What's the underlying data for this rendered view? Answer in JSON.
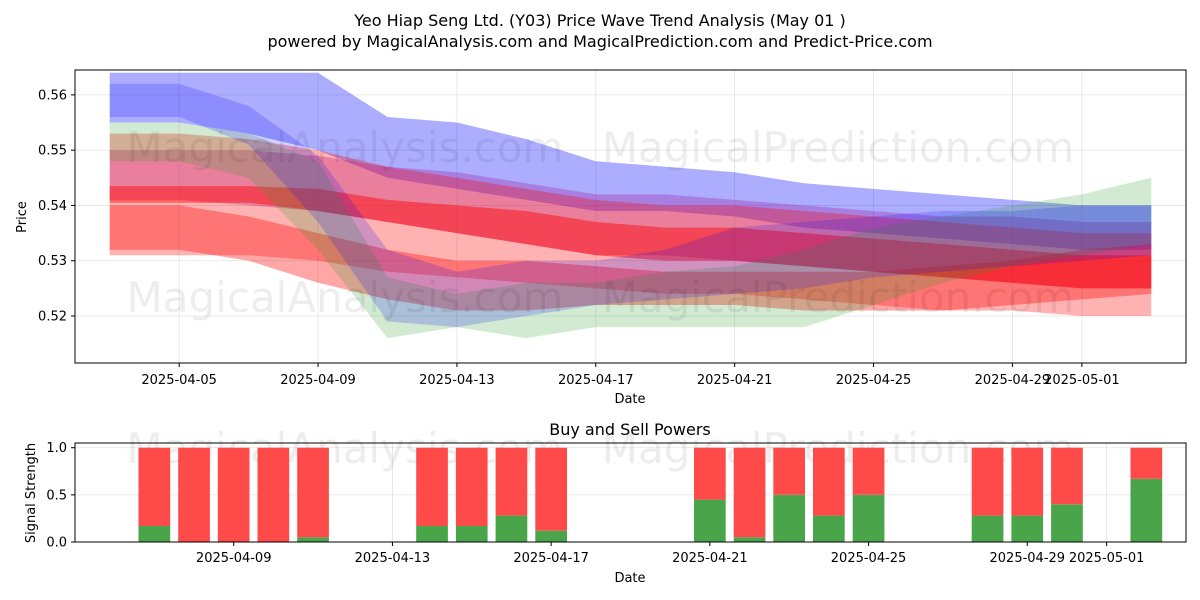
{
  "title_line1": "Yeo Hiap Seng Ltd. (Y03) Price Wave Trend Analysis (May 01 )",
  "title_line2": "powered by MagicalAnalysis.com and MagicalPrediction.com and Predict-Price.com",
  "watermarks": [
    "MagicalAnalysis.com",
    "MagicalPrediction.com"
  ],
  "colors": {
    "blue": "#0000ff",
    "red": "#ff0000",
    "green": "#2ca02c",
    "purple": "#a020a0",
    "buy": "#4aa54a",
    "sell": "#ff4a4a"
  },
  "chart_data": [
    {
      "type": "area",
      "title": "",
      "xlabel": "Date",
      "ylabel": "Price",
      "x_range": [
        "2025-04-02",
        "2025-05-04"
      ],
      "ylim": [
        0.5115,
        0.5645
      ],
      "x_ticks": [
        "2025-04-05",
        "2025-04-09",
        "2025-04-13",
        "2025-04-17",
        "2025-04-21",
        "2025-04-25",
        "2025-04-29",
        "2025-05-01"
      ],
      "y_ticks": [
        "0.52",
        "0.53",
        "0.54",
        "0.55",
        "0.56"
      ],
      "grid": true,
      "x": [
        "2025-04-03",
        "2025-04-05",
        "2025-04-07",
        "2025-04-09",
        "2025-04-11",
        "2025-04-13",
        "2025-04-15",
        "2025-04-17",
        "2025-04-19",
        "2025-04-21",
        "2025-04-23",
        "2025-04-25",
        "2025-04-27",
        "2025-04-29",
        "2025-05-01",
        "2025-05-03"
      ],
      "bands": [
        {
          "color": "blue",
          "opacity": 0.32,
          "upper": [
            0.564,
            0.564,
            0.564,
            0.564,
            0.556,
            0.555,
            0.552,
            0.548,
            0.547,
            0.546,
            0.544,
            0.543,
            0.542,
            0.541,
            0.54,
            0.54
          ],
          "lower": [
            0.555,
            0.555,
            0.553,
            0.55,
            0.545,
            0.543,
            0.541,
            0.539,
            0.539,
            0.538,
            0.536,
            0.535,
            0.534,
            0.533,
            0.532,
            0.532
          ]
        },
        {
          "color": "purple",
          "opacity": 0.32,
          "upper": [
            0.55,
            0.55,
            0.55,
            0.549,
            0.547,
            0.546,
            0.544,
            0.542,
            0.542,
            0.541,
            0.54,
            0.539,
            0.538,
            0.538,
            0.537,
            0.537
          ],
          "lower": [
            0.541,
            0.541,
            0.54,
            0.539,
            0.537,
            0.535,
            0.533,
            0.531,
            0.531,
            0.53,
            0.529,
            0.528,
            0.527,
            0.526,
            0.525,
            0.525
          ]
        },
        {
          "color": "red",
          "opacity": 0.3,
          "upper": [
            0.553,
            0.553,
            0.552,
            0.55,
            0.547,
            0.545,
            0.543,
            0.541,
            0.54,
            0.54,
            0.539,
            0.538,
            0.537,
            0.536,
            0.535,
            0.535
          ],
          "lower": [
            0.531,
            0.531,
            0.531,
            0.53,
            0.528,
            0.527,
            0.526,
            0.525,
            0.524,
            0.524,
            0.523,
            0.522,
            0.521,
            0.521,
            0.52,
            0.52
          ]
        },
        {
          "color": "red",
          "opacity": 0.45,
          "upper": [
            0.5435,
            0.5435,
            0.5435,
            0.543,
            0.541,
            0.54,
            0.539,
            0.537,
            0.536,
            0.536,
            0.535,
            0.534,
            0.533,
            0.532,
            0.531,
            0.531
          ],
          "lower": [
            0.5405,
            0.5405,
            0.5405,
            0.539,
            0.537,
            0.535,
            0.533,
            0.531,
            0.53,
            0.53,
            0.529,
            0.528,
            0.527,
            0.526,
            0.525,
            0.525
          ]
        },
        {
          "color": "red",
          "opacity": 0.35,
          "upper": [
            0.54,
            0.54,
            0.538,
            0.535,
            0.532,
            0.53,
            0.53,
            0.529,
            0.528,
            0.528,
            0.528,
            0.528,
            0.529,
            0.53,
            0.532,
            0.533
          ],
          "lower": [
            0.532,
            0.532,
            0.53,
            0.526,
            0.523,
            0.521,
            0.521,
            0.522,
            0.522,
            0.522,
            0.521,
            0.521,
            0.521,
            0.522,
            0.523,
            0.524
          ]
        },
        {
          "color": "green",
          "opacity": 0.22,
          "upper": [
            0.555,
            0.555,
            0.553,
            0.548,
            0.527,
            0.524,
            0.526,
            0.526,
            0.528,
            0.529,
            0.532,
            0.536,
            0.538,
            0.54,
            0.542,
            0.545
          ],
          "lower": [
            0.548,
            0.548,
            0.545,
            0.532,
            0.516,
            0.518,
            0.516,
            0.518,
            0.518,
            0.518,
            0.518,
            0.522,
            0.526,
            0.529,
            0.531,
            0.533
          ]
        },
        {
          "color": "blue",
          "opacity": 0.18,
          "upper": [
            0.562,
            0.562,
            0.558,
            0.549,
            0.532,
            0.528,
            0.53,
            0.53,
            0.532,
            0.536,
            0.537,
            0.538,
            0.539,
            0.539,
            0.54,
            0.54
          ],
          "lower": [
            0.556,
            0.556,
            0.551,
            0.537,
            0.519,
            0.518,
            0.52,
            0.522,
            0.523,
            0.524,
            0.525,
            0.527,
            0.528,
            0.529,
            0.53,
            0.531
          ]
        }
      ]
    },
    {
      "type": "bar",
      "title": "Buy and Sell Powers",
      "xlabel": "Date",
      "ylabel": "Signal Strength",
      "ylim": [
        0,
        1.05
      ],
      "x_range": [
        "2025-04-05",
        "2025-05-03"
      ],
      "x_ticks": [
        "2025-04-09",
        "2025-04-13",
        "2025-04-17",
        "2025-04-21",
        "2025-04-25",
        "2025-04-29",
        "2025-05-01"
      ],
      "y_ticks": [
        "0.0",
        "0.5",
        "1.0"
      ],
      "grid": true,
      "categories": [
        "2025-04-07",
        "2025-04-08",
        "2025-04-09",
        "2025-04-10",
        "2025-04-11",
        "2025-04-14",
        "2025-04-15",
        "2025-04-16",
        "2025-04-17",
        "2025-04-21",
        "2025-04-22",
        "2025-04-23",
        "2025-04-24",
        "2025-04-25",
        "2025-04-28",
        "2025-04-29",
        "2025-04-30",
        "2025-05-02"
      ],
      "series": [
        {
          "name": "",
          "color": "buy",
          "values": [
            0.17,
            0.0,
            0.0,
            0.0,
            0.05,
            0.17,
            0.17,
            0.28,
            0.12,
            0.45,
            0.05,
            0.5,
            0.28,
            0.5,
            0.28,
            0.28,
            0.4,
            0.67
          ]
        },
        {
          "name": "",
          "color": "sell",
          "values": [
            0.83,
            1.0,
            1.0,
            1.0,
            0.95,
            0.83,
            0.83,
            0.72,
            0.88,
            0.55,
            0.95,
            0.5,
            0.72,
            0.5,
            0.72,
            0.72,
            0.6,
            0.33
          ]
        }
      ]
    }
  ]
}
